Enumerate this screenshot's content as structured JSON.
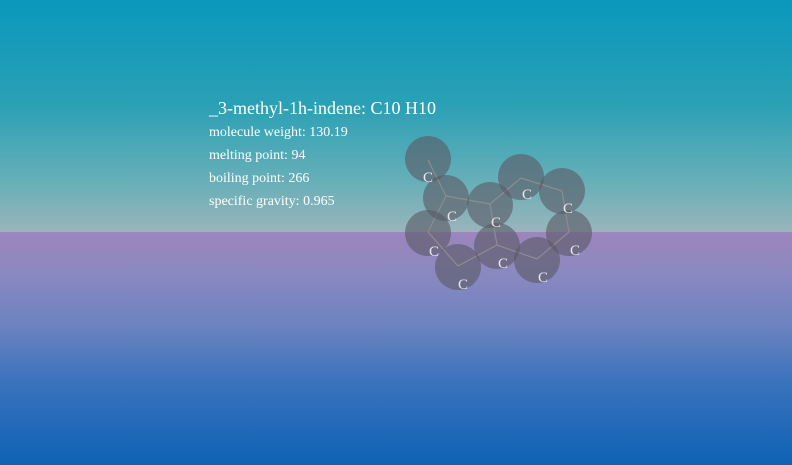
{
  "scene": {
    "title": "_3-methyl-1h-indene: C10 H10",
    "properties": [
      {
        "label": "molecule weight: 130.19"
      },
      {
        "label": "melting point: 94"
      },
      {
        "label": "boiling point: 266"
      },
      {
        "label": "specific gravity: 0.965"
      }
    ]
  },
  "atoms": [
    {
      "symbol": "C"
    },
    {
      "symbol": "C"
    },
    {
      "symbol": "C"
    },
    {
      "symbol": "C"
    },
    {
      "symbol": "C"
    },
    {
      "symbol": "C"
    },
    {
      "symbol": "C"
    },
    {
      "symbol": "C"
    },
    {
      "symbol": "C"
    },
    {
      "symbol": "C"
    }
  ],
  "colors": {
    "sky_top": "#0a98bd",
    "floor_bottom": "#0e62b4",
    "atom_fill": "#5a5a66",
    "bond": "#dcdcdc",
    "text": "#ffffff"
  }
}
